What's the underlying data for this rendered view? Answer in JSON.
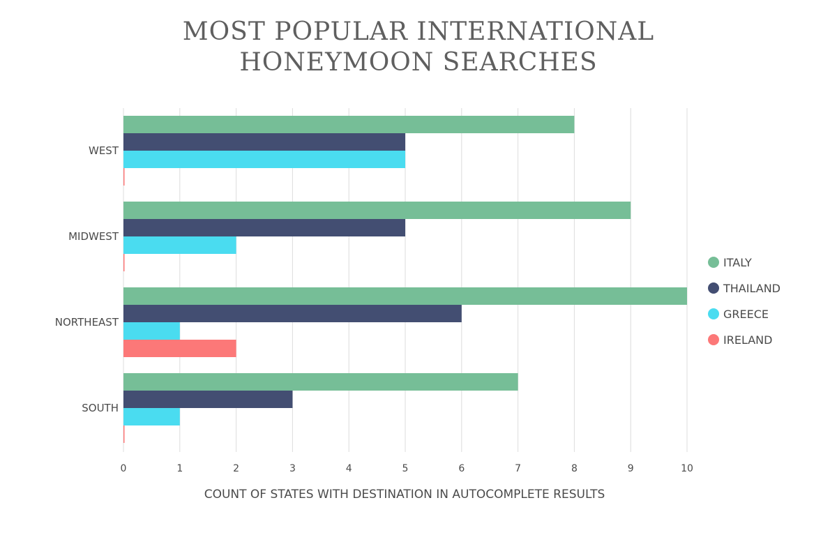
{
  "chart_data": {
    "type": "bar",
    "orientation": "horizontal",
    "title_lines": [
      "MOST POPULAR INTERNATIONAL",
      "HONEYMOON SEARCHES"
    ],
    "xlabel": "COUNT OF STATES WITH DESTINATION IN AUTOCOMPLETE RESULTS",
    "ylabel": "",
    "categories": [
      "WEST",
      "MIDWEST",
      "NORTHEAST",
      "SOUTH"
    ],
    "series": [
      {
        "name": "ITALY",
        "color": "#76be97",
        "values": [
          8,
          9,
          10,
          7
        ]
      },
      {
        "name": "THAILAND",
        "color": "#434e72",
        "values": [
          5,
          5,
          6,
          3
        ]
      },
      {
        "name": "GREECE",
        "color": "#4adcf0",
        "values": [
          5,
          2,
          1,
          1
        ]
      },
      {
        "name": "IRELAND",
        "color": "#fc7878",
        "values": [
          0,
          0,
          2,
          0
        ]
      }
    ],
    "xlim": [
      0,
      10
    ],
    "xticks": [
      "0",
      "1",
      "2",
      "3",
      "4",
      "5",
      "6",
      "7",
      "8",
      "9",
      "10"
    ],
    "grid": true,
    "legend_position": "right"
  }
}
